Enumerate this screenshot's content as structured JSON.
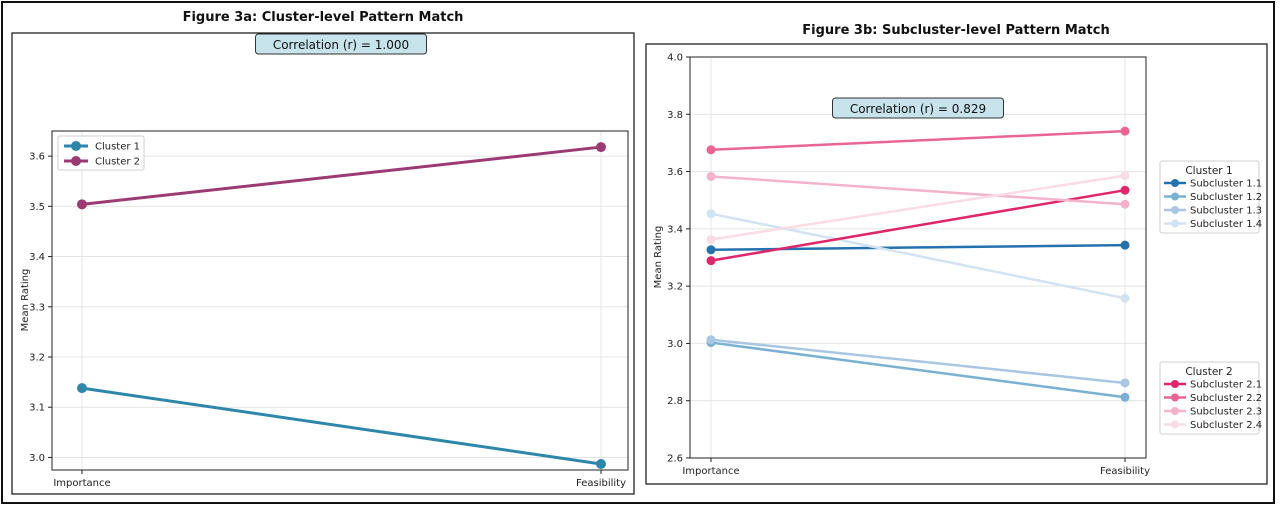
{
  "chart_data": [
    {
      "type": "line",
      "title": "Figure 3a: Cluster-level Pattern Match",
      "xlabel": "",
      "ylabel": "Mean Rating",
      "categories": [
        "Importance",
        "Feasibility"
      ],
      "ylim": [
        2.975,
        3.65
      ],
      "yticks": [
        3.0,
        3.1,
        3.2,
        3.3,
        3.4,
        3.5,
        3.6
      ],
      "grid": true,
      "annotation": "Correlation (r) = 1.000",
      "legend": {
        "placement": "upper-left",
        "title": ""
      },
      "series": [
        {
          "name": "Cluster 1",
          "values": [
            3.138,
            2.987
          ],
          "color": "#2e86ab"
        },
        {
          "name": "Cluster 2",
          "values": [
            3.504,
            3.618
          ],
          "color": "#9c3a73"
        }
      ]
    },
    {
      "type": "line",
      "title": "Figure 3b: Subcluster-level Pattern Match",
      "xlabel": "",
      "ylabel": "Mean Rating",
      "categories": [
        "Importance",
        "Feasibility"
      ],
      "ylim": [
        2.6,
        4.0
      ],
      "yticks": [
        2.6,
        2.8,
        3.0,
        3.2,
        3.4,
        3.6,
        3.8,
        4.0
      ],
      "grid": true,
      "annotation": "Correlation (r) = 0.829",
      "legends": [
        {
          "title": "Cluster 1",
          "placement": "right-upper",
          "entries": [
            "Subcluster 1.1",
            "Subcluster 1.2",
            "Subcluster 1.3",
            "Subcluster 1.4"
          ]
        },
        {
          "title": "Cluster 2",
          "placement": "right-lower",
          "entries": [
            "Subcluster 2.1",
            "Subcluster 2.2",
            "Subcluster 2.3",
            "Subcluster 2.4"
          ]
        }
      ],
      "series": [
        {
          "name": "Subcluster 1.1",
          "values": [
            3.327,
            3.343
          ],
          "color": "#2471b0"
        },
        {
          "name": "Subcluster 1.2",
          "values": [
            3.003,
            2.812
          ],
          "color": "#7ab0d2"
        },
        {
          "name": "Subcluster 1.3",
          "values": [
            3.013,
            2.862
          ],
          "color": "#a9c6e3"
        },
        {
          "name": "Subcluster 1.4",
          "values": [
            3.453,
            3.158
          ],
          "color": "#d2e4f2"
        },
        {
          "name": "Subcluster 2.1",
          "values": [
            3.289,
            3.535
          ],
          "color": "#e0266b"
        },
        {
          "name": "Subcluster 2.2",
          "values": [
            3.676,
            3.741
          ],
          "color": "#e96596"
        },
        {
          "name": "Subcluster 2.3",
          "values": [
            3.583,
            3.486
          ],
          "color": "#f3b3cd"
        },
        {
          "name": "Subcluster 2.4",
          "values": [
            3.363,
            3.586
          ],
          "color": "#fadbe6"
        }
      ]
    }
  ]
}
